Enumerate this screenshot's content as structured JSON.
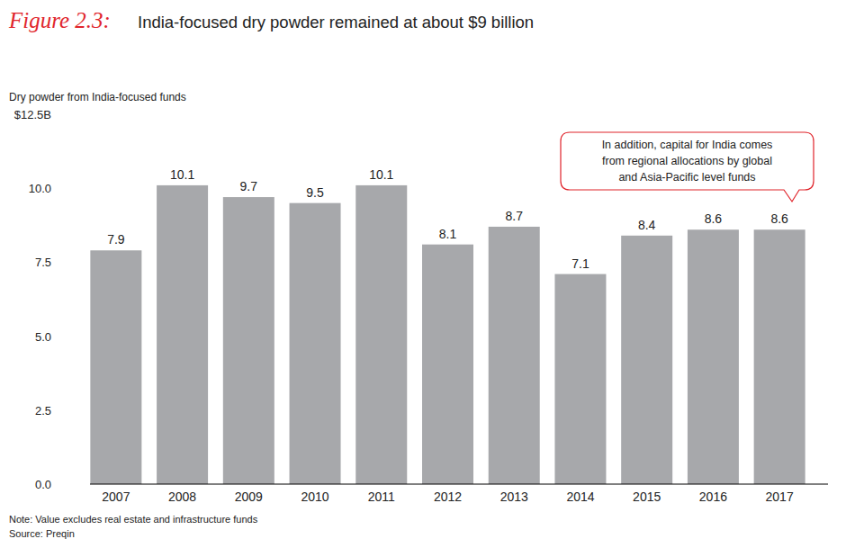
{
  "chart_data": {
    "type": "bar",
    "figure_label": "Figure 2.3:",
    "title": "India-focused dry powder remained at about $9 billion",
    "y_label": "Dry powder from India-focused funds",
    "categories": [
      "2007",
      "2008",
      "2009",
      "2010",
      "2011",
      "2012",
      "2013",
      "2014",
      "2015",
      "2016",
      "2017"
    ],
    "values": [
      7.9,
      10.1,
      9.7,
      9.5,
      10.1,
      8.1,
      8.7,
      7.1,
      8.4,
      8.6,
      8.6
    ],
    "color": "#a7a8ab",
    "ylim": [
      0,
      12.5
    ],
    "yticks": [
      {
        "value": 0,
        "label": "0.0"
      },
      {
        "value": 2.5,
        "label": "2.5"
      },
      {
        "value": 5,
        "label": "5.0"
      },
      {
        "value": 7.5,
        "label": "7.5"
      },
      {
        "value": 10,
        "label": "10.0"
      },
      {
        "value": 12.5,
        "label": "$12.5B"
      }
    ],
    "grid": false,
    "data_labels": true,
    "annotation": [
      "In addition, capital for India comes",
      "from regional allocations by global",
      "and Asia-Pacific level funds"
    ],
    "note": "Note: Value excludes real estate and infrastructure funds",
    "source": "Source: Preqin"
  }
}
